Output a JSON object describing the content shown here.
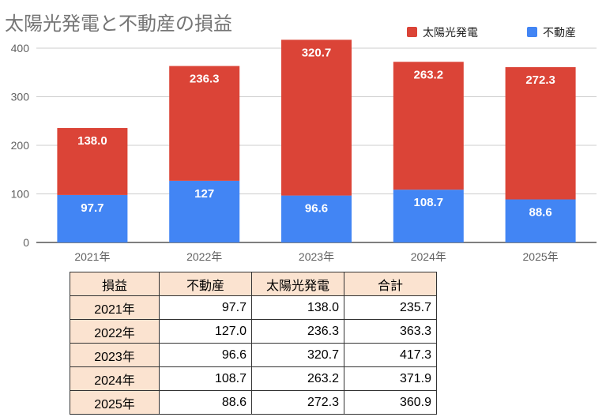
{
  "chart_data": {
    "type": "bar",
    "stacked": true,
    "title": "太陽光発電と不動産の損益",
    "categories": [
      "2021年",
      "2022年",
      "2023年",
      "2024年",
      "2025年"
    ],
    "series": [
      {
        "name": "不動産",
        "values": [
          97.7,
          127,
          96.6,
          108.7,
          88.6
        ],
        "color": "#4285f4",
        "labels": [
          "97.7",
          "127",
          "96.6",
          "108.7",
          "88.6"
        ]
      },
      {
        "name": "太陽光発電",
        "values": [
          138.0,
          236.3,
          320.7,
          263.2,
          272.3
        ],
        "color": "#db4437",
        "labels": [
          "138.0",
          "236.3",
          "320.7",
          "263.2",
          "272.3"
        ]
      }
    ],
    "ylim": [
      0,
      400
    ],
    "yticks": [
      "0",
      "100",
      "200",
      "300",
      "400"
    ],
    "legend_position": "top-right",
    "legend_order": [
      "太陽光発電",
      "不動産"
    ],
    "grid": true
  },
  "table": {
    "headers": [
      "損益",
      "不動産",
      "太陽光発電",
      "合計"
    ],
    "rows": [
      [
        "2021年",
        "97.7",
        "138.0",
        "235.7"
      ],
      [
        "2022年",
        "127.0",
        "236.3",
        "363.3"
      ],
      [
        "2023年",
        "96.6",
        "320.7",
        "417.3"
      ],
      [
        "2024年",
        "108.7",
        "263.2",
        "371.9"
      ],
      [
        "2025年",
        "88.6",
        "272.3",
        "360.9"
      ]
    ]
  }
}
